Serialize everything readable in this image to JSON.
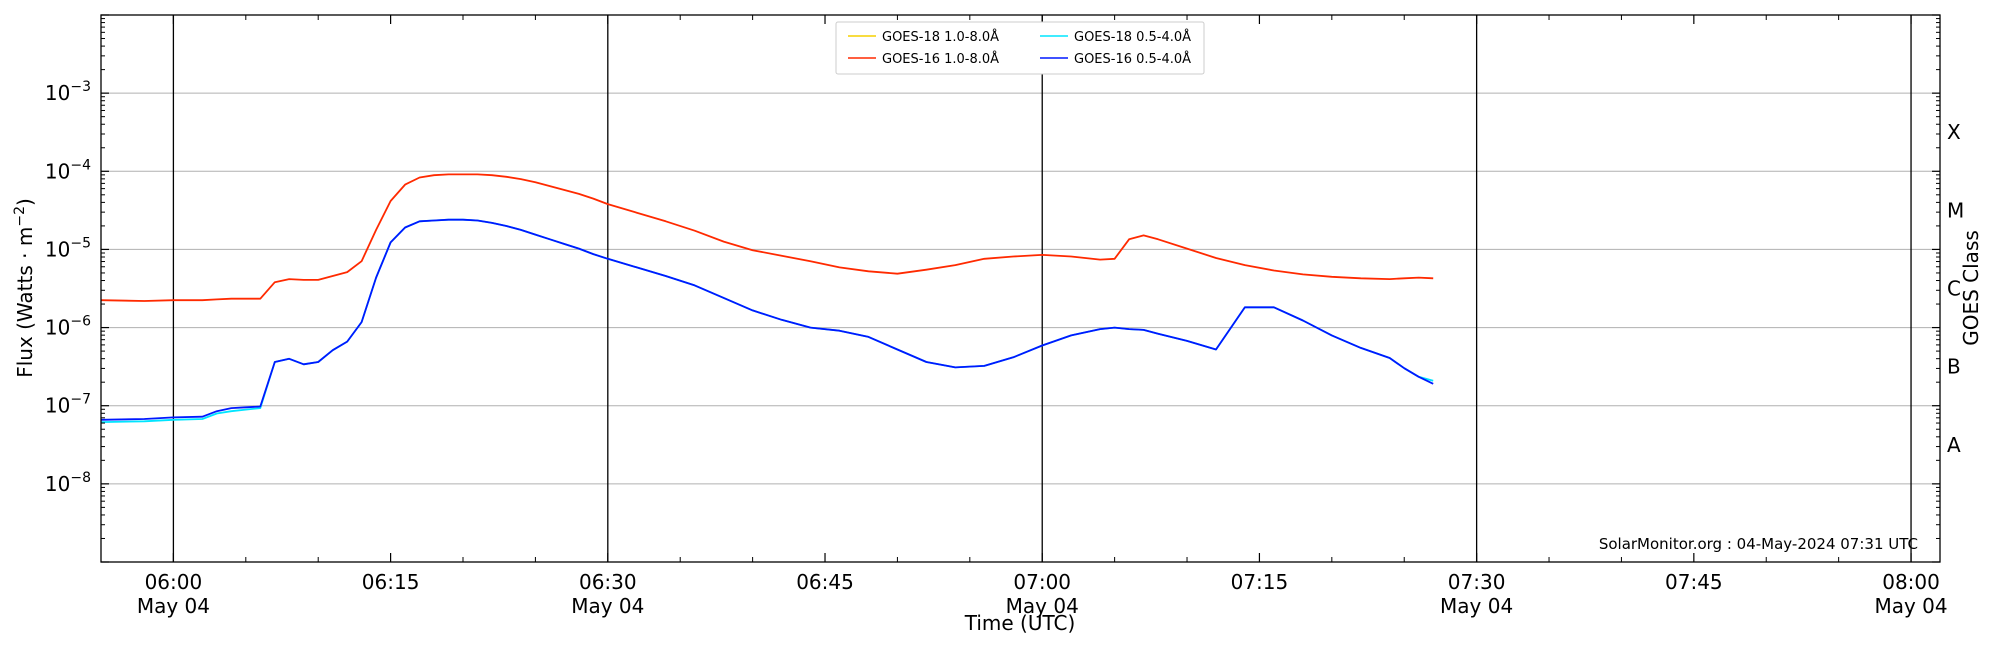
{
  "chart_data": {
    "type": "line",
    "xlabel": "Time (UTC)",
    "ylabel_parts": [
      "Flux (Watts · m",
      "−2",
      ")"
    ],
    "ylabel_right": "GOES Class",
    "watermark": "SolarMonitor.org : 04-May-2024 07:31 UTC",
    "x_range": [
      "05:55",
      "08:02"
    ],
    "ylim_exponent": [
      -9,
      -2
    ],
    "y_scale": "log",
    "y_ticks": [
      {
        "exp": -8,
        "base": "10",
        "sup": "−8"
      },
      {
        "exp": -7,
        "base": "10",
        "sup": "−7"
      },
      {
        "exp": -6,
        "base": "10",
        "sup": "−6"
      },
      {
        "exp": -5,
        "base": "10",
        "sup": "−5"
      },
      {
        "exp": -4,
        "base": "10",
        "sup": "−4"
      },
      {
        "exp": -3,
        "base": "10",
        "sup": "−3"
      }
    ],
    "goes_classes": [
      {
        "label": "A",
        "exp": -7.5
      },
      {
        "label": "B",
        "exp": -6.5
      },
      {
        "label": "C",
        "exp": -5.5
      },
      {
        "label": "M",
        "exp": -4.5
      },
      {
        "label": "X",
        "exp": -3.5
      }
    ],
    "x_ticks": [
      {
        "time": "06:00",
        "label": "06:00",
        "date": "May 04",
        "vline": true
      },
      {
        "time": "06:15",
        "label": "06:15",
        "date": "",
        "vline": false
      },
      {
        "time": "06:30",
        "label": "06:30",
        "date": "May 04",
        "vline": true
      },
      {
        "time": "06:45",
        "label": "06:45",
        "date": "",
        "vline": false
      },
      {
        "time": "07:00",
        "label": "07:00",
        "date": "May 04",
        "vline": true
      },
      {
        "time": "07:15",
        "label": "07:15",
        "date": "",
        "vline": false
      },
      {
        "time": "07:30",
        "label": "07:30",
        "date": "May 04",
        "vline": true
      },
      {
        "time": "07:45",
        "label": "07:45",
        "date": "",
        "vline": false
      },
      {
        "time": "08:00",
        "label": "08:00",
        "date": "May 04",
        "vline": true
      }
    ],
    "grid": "horizontal",
    "legend_position": "top-center",
    "legend": [
      {
        "name": "GOES-18 1.0-8.0Å",
        "color": "#f5d000"
      },
      {
        "name": "GOES-16 1.0-8.0Å",
        "color": "#ff2a00"
      },
      {
        "name": "GOES-18 0.5-4.0Å",
        "color": "#00e5ff"
      },
      {
        "name": "GOES-16 0.5-4.0Å",
        "color": "#0018ff"
      }
    ],
    "series": [
      {
        "name": "GOES-16 1.0-8.0Å",
        "color": "#ff2a00",
        "points": [
          [
            "05:55",
            -5.65
          ],
          [
            "05:58",
            -5.66
          ],
          [
            "06:00",
            -5.65
          ],
          [
            "06:02",
            -5.65
          ],
          [
            "06:03",
            -5.64
          ],
          [
            "06:04",
            -5.63
          ],
          [
            "06:05",
            -5.63
          ],
          [
            "06:06",
            -5.63
          ],
          [
            "06:07",
            -5.42
          ],
          [
            "06:08",
            -5.38
          ],
          [
            "06:09",
            -5.39
          ],
          [
            "06:10",
            -5.39
          ],
          [
            "06:11",
            -5.34
          ],
          [
            "06:12",
            -5.29
          ],
          [
            "06:13",
            -5.15
          ],
          [
            "06:14",
            -4.75
          ],
          [
            "06:15",
            -4.38
          ],
          [
            "06:16",
            -4.17
          ],
          [
            "06:17",
            -4.08
          ],
          [
            "06:18",
            -4.05
          ],
          [
            "06:19",
            -4.04
          ],
          [
            "06:20",
            -4.04
          ],
          [
            "06:21",
            -4.04
          ],
          [
            "06:22",
            -4.05
          ],
          [
            "06:23",
            -4.07
          ],
          [
            "06:24",
            -4.1
          ],
          [
            "06:25",
            -4.14
          ],
          [
            "06:26",
            -4.19
          ],
          [
            "06:27",
            -4.24
          ],
          [
            "06:28",
            -4.29
          ],
          [
            "06:29",
            -4.35
          ],
          [
            "06:30",
            -4.42
          ],
          [
            "06:32",
            -4.53
          ],
          [
            "06:34",
            -4.64
          ],
          [
            "06:36",
            -4.76
          ],
          [
            "06:38",
            -4.9
          ],
          [
            "06:40",
            -5.01
          ],
          [
            "06:42",
            -5.08
          ],
          [
            "06:44",
            -5.15
          ],
          [
            "06:46",
            -5.23
          ],
          [
            "06:48",
            -5.28
          ],
          [
            "06:50",
            -5.31
          ],
          [
            "06:52",
            -5.26
          ],
          [
            "06:54",
            -5.2
          ],
          [
            "06:56",
            -5.12
          ],
          [
            "06:58",
            -5.09
          ],
          [
            "07:00",
            -5.07
          ],
          [
            "07:02",
            -5.09
          ],
          [
            "07:04",
            -5.13
          ],
          [
            "07:05",
            -5.12
          ],
          [
            "07:06",
            -4.87
          ],
          [
            "07:07",
            -4.82
          ],
          [
            "07:08",
            -4.87
          ],
          [
            "07:10",
            -4.99
          ],
          [
            "07:12",
            -5.11
          ],
          [
            "07:14",
            -5.2
          ],
          [
            "07:16",
            -5.27
          ],
          [
            "07:18",
            -5.32
          ],
          [
            "07:20",
            -5.35
          ],
          [
            "07:22",
            -5.37
          ],
          [
            "07:24",
            -5.38
          ],
          [
            "07:25",
            -5.37
          ],
          [
            "07:26",
            -5.36
          ],
          [
            "07:27",
            -5.37
          ]
        ]
      },
      {
        "name": "GOES-18 0.5-4.0Å",
        "color": "#00e5ff",
        "points": [
          [
            "05:55",
            -7.21
          ],
          [
            "05:58",
            -7.2
          ],
          [
            "06:00",
            -7.18
          ],
          [
            "06:02",
            -7.17
          ],
          [
            "06:03",
            -7.1
          ],
          [
            "06:04",
            -7.07
          ],
          [
            "06:05",
            -7.05
          ],
          [
            "06:06",
            -7.03
          ],
          [
            "06:07",
            -6.44
          ],
          [
            "06:08",
            -6.4
          ],
          [
            "06:09",
            -6.47
          ],
          [
            "06:10",
            -6.44
          ],
          [
            "06:11",
            -6.29
          ],
          [
            "06:12",
            -6.18
          ],
          [
            "06:13",
            -5.93
          ],
          [
            "06:14",
            -5.36
          ],
          [
            "06:15",
            -4.91
          ],
          [
            "06:16",
            -4.72
          ],
          [
            "06:17",
            -4.64
          ],
          [
            "06:18",
            -4.63
          ],
          [
            "06:19",
            -4.62
          ],
          [
            "06:20",
            -4.62
          ],
          [
            "06:21",
            -4.63
          ],
          [
            "06:22",
            -4.66
          ],
          [
            "06:23",
            -4.7
          ],
          [
            "06:24",
            -4.75
          ],
          [
            "06:25",
            -4.81
          ],
          [
            "06:26",
            -4.87
          ],
          [
            "06:27",
            -4.93
          ],
          [
            "06:28",
            -4.99
          ],
          [
            "06:29",
            -5.06
          ],
          [
            "06:30",
            -5.12
          ],
          [
            "06:32",
            -5.23
          ],
          [
            "06:34",
            -5.34
          ],
          [
            "06:36",
            -5.46
          ],
          [
            "06:38",
            -5.62
          ],
          [
            "06:40",
            -5.78
          ],
          [
            "06:42",
            -5.9
          ],
          [
            "06:44",
            -6.0
          ],
          [
            "06:46",
            -6.04
          ],
          [
            "06:48",
            -6.12
          ],
          [
            "06:50",
            -6.28
          ],
          [
            "06:52",
            -6.44
          ],
          [
            "06:54",
            -6.51
          ],
          [
            "06:56",
            -6.49
          ],
          [
            "06:58",
            -6.38
          ],
          [
            "07:00",
            -6.23
          ],
          [
            "07:02",
            -6.1
          ],
          [
            "07:04",
            -6.02
          ],
          [
            "07:05",
            -6.0
          ],
          [
            "07:06",
            -6.02
          ],
          [
            "07:07",
            -6.03
          ],
          [
            "07:08",
            -6.08
          ],
          [
            "07:10",
            -6.17
          ],
          [
            "07:12",
            -6.28
          ],
          [
            "07:14",
            -5.74
          ],
          [
            "07:16",
            -5.74
          ],
          [
            "07:18",
            -5.91
          ],
          [
            "07:20",
            -6.1
          ],
          [
            "07:22",
            -6.26
          ],
          [
            "07:24",
            -6.39
          ],
          [
            "07:25",
            -6.52
          ],
          [
            "07:26",
            -6.63
          ],
          [
            "07:27",
            -6.68
          ]
        ]
      },
      {
        "name": "GOES-16 0.5-4.0Å",
        "color": "#0018ff",
        "points": [
          [
            "05:55",
            -7.18
          ],
          [
            "05:58",
            -7.17
          ],
          [
            "06:00",
            -7.15
          ],
          [
            "06:02",
            -7.14
          ],
          [
            "06:03",
            -7.07
          ],
          [
            "06:04",
            -7.03
          ],
          [
            "06:05",
            -7.02
          ],
          [
            "06:06",
            -7.01
          ],
          [
            "06:07",
            -6.44
          ],
          [
            "06:08",
            -6.4
          ],
          [
            "06:09",
            -6.47
          ],
          [
            "06:10",
            -6.44
          ],
          [
            "06:11",
            -6.29
          ],
          [
            "06:12",
            -6.18
          ],
          [
            "06:13",
            -5.93
          ],
          [
            "06:14",
            -5.36
          ],
          [
            "06:15",
            -4.91
          ],
          [
            "06:16",
            -4.72
          ],
          [
            "06:17",
            -4.64
          ],
          [
            "06:18",
            -4.63
          ],
          [
            "06:19",
            -4.62
          ],
          [
            "06:20",
            -4.62
          ],
          [
            "06:21",
            -4.63
          ],
          [
            "06:22",
            -4.66
          ],
          [
            "06:23",
            -4.7
          ],
          [
            "06:24",
            -4.75
          ],
          [
            "06:25",
            -4.81
          ],
          [
            "06:26",
            -4.87
          ],
          [
            "06:27",
            -4.93
          ],
          [
            "06:28",
            -4.99
          ],
          [
            "06:29",
            -5.06
          ],
          [
            "06:30",
            -5.12
          ],
          [
            "06:32",
            -5.23
          ],
          [
            "06:34",
            -5.34
          ],
          [
            "06:36",
            -5.46
          ],
          [
            "06:38",
            -5.62
          ],
          [
            "06:40",
            -5.78
          ],
          [
            "06:42",
            -5.9
          ],
          [
            "06:44",
            -6.0
          ],
          [
            "06:46",
            -6.04
          ],
          [
            "06:48",
            -6.12
          ],
          [
            "06:50",
            -6.28
          ],
          [
            "06:52",
            -6.44
          ],
          [
            "06:54",
            -6.51
          ],
          [
            "06:56",
            -6.49
          ],
          [
            "06:58",
            -6.38
          ],
          [
            "07:00",
            -6.23
          ],
          [
            "07:02",
            -6.1
          ],
          [
            "07:04",
            -6.02
          ],
          [
            "07:05",
            -6.0
          ],
          [
            "07:06",
            -6.02
          ],
          [
            "07:07",
            -6.03
          ],
          [
            "07:08",
            -6.08
          ],
          [
            "07:10",
            -6.17
          ],
          [
            "07:12",
            -6.28
          ],
          [
            "07:14",
            -5.74
          ],
          [
            "07:16",
            -5.74
          ],
          [
            "07:18",
            -5.91
          ],
          [
            "07:20",
            -6.1
          ],
          [
            "07:22",
            -6.26
          ],
          [
            "07:24",
            -6.39
          ],
          [
            "07:25",
            -6.52
          ],
          [
            "07:26",
            -6.63
          ],
          [
            "07:27",
            -6.72
          ]
        ]
      }
    ]
  }
}
